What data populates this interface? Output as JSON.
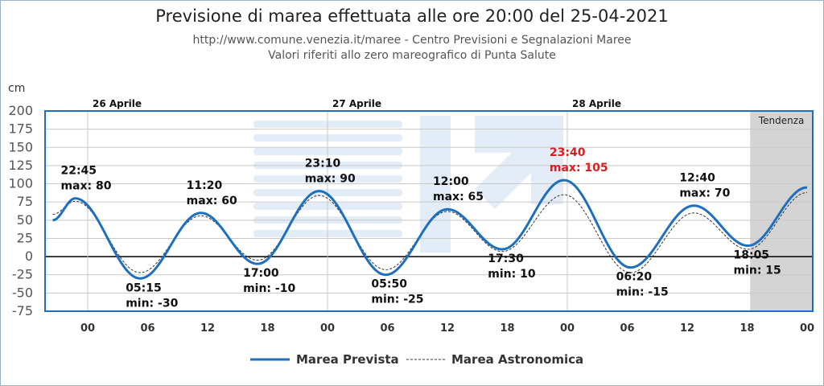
{
  "header": {
    "title": "Previsione di marea effettuata alle ore 20:00 del 25-04-2021",
    "source": "http://www.comune.venezia.it/maree - Centro Previsioni e Segnalazioni Maree",
    "reference": "Valori riferiti allo zero mareografico di Punta Salute"
  },
  "chart_data": {
    "type": "line",
    "ylabel": "cm",
    "ylim": [
      -75,
      200
    ],
    "yticks": [
      -75,
      -50,
      -25,
      0,
      25,
      50,
      75,
      100,
      125,
      150,
      175,
      200
    ],
    "xlim_hours": [
      -3.5,
      72
    ],
    "xticks": [
      {
        "h": 0,
        "label": "00"
      },
      {
        "h": 6,
        "label": "06"
      },
      {
        "h": 12,
        "label": "12"
      },
      {
        "h": 18,
        "label": "18"
      },
      {
        "h": 24,
        "label": "00"
      },
      {
        "h": 30,
        "label": "06"
      },
      {
        "h": 36,
        "label": "12"
      },
      {
        "h": 42,
        "label": "18"
      },
      {
        "h": 48,
        "label": "00"
      },
      {
        "h": 54,
        "label": "06"
      },
      {
        "h": 60,
        "label": "12"
      },
      {
        "h": 66,
        "label": "18"
      },
      {
        "h": 72,
        "label": "00"
      }
    ],
    "days": [
      {
        "h": 0,
        "label": "26 Aprile"
      },
      {
        "h": 24,
        "label": "27 Aprile"
      },
      {
        "h": 48,
        "label": "28 Aprile"
      }
    ],
    "tendenza": {
      "from_h": 66.3,
      "label": "Tendenza"
    },
    "series": [
      {
        "name": "Marea Prevista",
        "color": "#1f6fbf",
        "points": [
          [
            -3.5,
            50
          ],
          [
            -1.25,
            80
          ],
          [
            5.25,
            -30
          ],
          [
            11.33,
            60
          ],
          [
            17.0,
            -10
          ],
          [
            23.17,
            90
          ],
          [
            29.83,
            -25
          ],
          [
            36.0,
            65
          ],
          [
            41.5,
            10
          ],
          [
            47.67,
            105
          ],
          [
            54.33,
            -15
          ],
          [
            60.67,
            70
          ],
          [
            66.08,
            15
          ],
          [
            72.0,
            95
          ]
        ]
      },
      {
        "name": "Marea Astronomica",
        "color": "#333333",
        "points": [
          [
            -3.5,
            58
          ],
          [
            -1.25,
            76
          ],
          [
            5.25,
            -22
          ],
          [
            11.33,
            56
          ],
          [
            17.0,
            -5
          ],
          [
            23.17,
            84
          ],
          [
            29.83,
            -18
          ],
          [
            36.0,
            62
          ],
          [
            41.5,
            7
          ],
          [
            47.67,
            85
          ],
          [
            54.33,
            -22
          ],
          [
            60.67,
            60
          ],
          [
            66.08,
            10
          ],
          [
            72.0,
            88
          ]
        ]
      }
    ],
    "annotations": [
      {
        "h": -1.25,
        "time": "22:45",
        "label": "max: 80",
        "pos": "above",
        "highlight": false
      },
      {
        "h": 5.25,
        "time": "05:15",
        "label": "min: -30",
        "pos": "below",
        "highlight": false
      },
      {
        "h": 11.33,
        "time": "11:20",
        "label": "max: 60",
        "pos": "above",
        "highlight": false
      },
      {
        "h": 17.0,
        "time": "17:00",
        "label": "min: -10",
        "pos": "below",
        "highlight": false
      },
      {
        "h": 23.17,
        "time": "23:10",
        "label": "max: 90",
        "pos": "above",
        "highlight": false
      },
      {
        "h": 29.83,
        "time": "05:50",
        "label": "min: -25",
        "pos": "below",
        "highlight": false
      },
      {
        "h": 36.0,
        "time": "12:00",
        "label": "max: 65",
        "pos": "above",
        "highlight": false
      },
      {
        "h": 41.5,
        "time": "17:30",
        "label": "min: 10",
        "pos": "below",
        "highlight": false
      },
      {
        "h": 47.67,
        "time": "23:40",
        "label": "max: 105",
        "pos": "above",
        "highlight": true
      },
      {
        "h": 54.33,
        "time": "06:20",
        "label": "min: -15",
        "pos": "below",
        "highlight": false
      },
      {
        "h": 60.67,
        "time": "12:40",
        "label": "max: 70",
        "pos": "above",
        "highlight": false
      },
      {
        "h": 66.08,
        "time": "18:05",
        "label": "min: 15",
        "pos": "below",
        "highlight": false
      }
    ],
    "legend": [
      "Marea Prevista",
      "Marea Astronomica"
    ]
  },
  "colors": {
    "predicted": "#1f6fbf",
    "astronomical": "#333333",
    "highlight": "#d62020",
    "tendenza_bg": "#d4d4d4",
    "axis_frame": "#1f6fbf"
  }
}
